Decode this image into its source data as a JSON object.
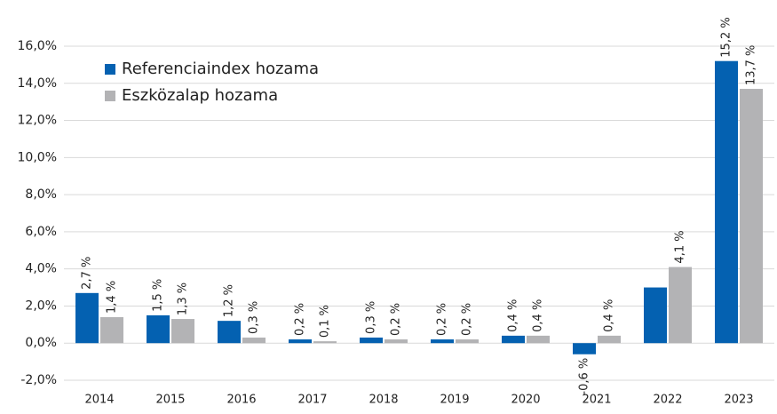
{
  "chart_data": {
    "type": "bar",
    "categories": [
      "2014",
      "2015",
      "2016",
      "2017",
      "2018",
      "2019",
      "2020",
      "2021",
      "2022",
      "2023"
    ],
    "series": [
      {
        "name": "Referenciaindex hozama",
        "color": "#0461b1",
        "values": [
          2.7,
          1.5,
          1.2,
          0.2,
          0.3,
          0.2,
          0.4,
          -0.6,
          3.0,
          15.2
        ],
        "value_labels": [
          "2,7 %",
          "1,5 %",
          "1,2 %",
          "0,2 %",
          "0,3 %",
          "0,2 %",
          "0,4 %",
          "-0,6 %",
          null,
          "15,2 %"
        ]
      },
      {
        "name": "Eszközalap hozama",
        "color": "#b3b3b5",
        "values": [
          1.4,
          1.3,
          0.3,
          0.1,
          0.2,
          0.2,
          0.4,
          0.4,
          4.1,
          13.7
        ],
        "value_labels": [
          "1,4 %",
          "1,3 %",
          "0,3 %",
          "0,1 %",
          "0,2 %",
          "0,2 %",
          "0,4 %",
          "0,4 %",
          "4,1 %",
          "13,7 %"
        ]
      }
    ],
    "ylim": [
      -2,
      16
    ],
    "yticks": [
      {
        "value": -2,
        "label": "-2,0%"
      },
      {
        "value": 0,
        "label": "0,0%"
      },
      {
        "value": 2,
        "label": "2,0%"
      },
      {
        "value": 4,
        "label": "4,0%"
      },
      {
        "value": 6,
        "label": "6,0%"
      },
      {
        "value": 8,
        "label": "8,0%"
      },
      {
        "value": 10,
        "label": "10,0%"
      },
      {
        "value": 12,
        "label": "12,0%"
      },
      {
        "value": 14,
        "label": "14,0%"
      },
      {
        "value": 16,
        "label": "16,0%"
      }
    ],
    "grid": true,
    "legend": "upper left"
  }
}
